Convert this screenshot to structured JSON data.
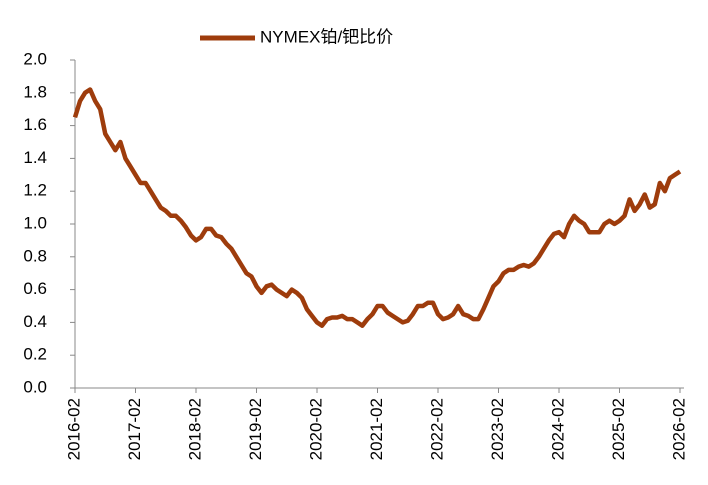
{
  "chart_data": {
    "type": "line",
    "legend": "top",
    "xticks": [
      "2016-02",
      "2017-02",
      "2018-02",
      "2019-02",
      "2020-02",
      "2021-02",
      "2022-02",
      "2023-02",
      "2024-02",
      "2025-02",
      "2026-02"
    ],
    "ylim": [
      0,
      2
    ],
    "yticks": [
      {
        "value": 0,
        "label": "0.0"
      },
      0.2,
      0.4,
      0.6,
      0.8,
      {
        "value": 1,
        "label": "1.0"
      },
      1.2,
      1.4,
      1.6,
      1.8,
      {
        "value": 2,
        "label": "2.0"
      }
    ],
    "x": [
      "2016-02",
      "2016-03",
      "2016-04",
      "2016-05",
      "2016-06",
      "2016-07",
      "2016-08",
      "2016-09",
      "2016-10",
      "2016-11",
      "2016-12",
      "2017-01",
      "2017-02",
      "2017-03",
      "2017-04",
      "2017-05",
      "2017-06",
      "2017-07",
      "2017-08",
      "2017-09",
      "2017-10",
      "2017-11",
      "2017-12",
      "2018-01",
      "2018-02",
      "2018-03",
      "2018-04",
      "2018-05",
      "2018-06",
      "2018-07",
      "2018-08",
      "2018-09",
      "2018-10",
      "2018-11",
      "2018-12",
      "2019-01",
      "2019-02",
      "2019-03",
      "2019-04",
      "2019-05",
      "2019-06",
      "2019-07",
      "2019-08",
      "2019-09",
      "2019-10",
      "2019-11",
      "2019-12",
      "2020-01",
      "2020-02",
      "2020-03",
      "2020-04",
      "2020-05",
      "2020-06",
      "2020-07",
      "2020-08",
      "2020-09",
      "2020-10",
      "2020-11",
      "2020-12",
      "2021-01",
      "2021-02",
      "2021-03",
      "2021-04",
      "2021-05",
      "2021-06",
      "2021-07",
      "2021-08",
      "2021-09",
      "2021-10",
      "2021-11",
      "2021-12",
      "2022-01",
      "2022-02",
      "2022-03",
      "2022-04",
      "2022-05",
      "2022-06",
      "2022-07",
      "2022-08",
      "2022-09",
      "2022-10",
      "2022-11",
      "2022-12",
      "2023-01",
      "2023-02",
      "2023-03",
      "2023-04",
      "2023-05",
      "2023-06",
      "2023-07",
      "2023-08",
      "2023-09",
      "2023-10",
      "2023-11",
      "2023-12",
      "2024-01",
      "2024-02",
      "2024-03",
      "2024-04",
      "2024-05",
      "2024-06",
      "2024-07",
      "2024-08",
      "2024-09",
      "2024-10",
      "2024-11",
      "2024-12",
      "2025-01",
      "2025-02",
      "2025-03",
      "2025-04",
      "2025-05",
      "2025-06",
      "2025-07",
      "2025-08",
      "2025-09",
      "2025-10",
      "2025-11",
      "2025-12",
      "2026-01",
      "2026-02"
    ],
    "series": [
      {
        "name": "NYMEX铂/钯比价",
        "color": "#9e3c0c",
        "values": [
          1.65,
          1.75,
          1.8,
          1.82,
          1.75,
          1.7,
          1.55,
          1.5,
          1.45,
          1.5,
          1.4,
          1.35,
          1.3,
          1.25,
          1.25,
          1.2,
          1.15,
          1.1,
          1.08,
          1.05,
          1.05,
          1.02,
          0.98,
          0.93,
          0.9,
          0.92,
          0.97,
          0.97,
          0.93,
          0.92,
          0.88,
          0.85,
          0.8,
          0.75,
          0.7,
          0.68,
          0.62,
          0.58,
          0.62,
          0.63,
          0.6,
          0.58,
          0.56,
          0.6,
          0.58,
          0.55,
          0.48,
          0.44,
          0.4,
          0.38,
          0.42,
          0.43,
          0.43,
          0.44,
          0.42,
          0.42,
          0.4,
          0.38,
          0.42,
          0.45,
          0.5,
          0.5,
          0.46,
          0.44,
          0.42,
          0.4,
          0.41,
          0.45,
          0.5,
          0.5,
          0.52,
          0.52,
          0.45,
          0.42,
          0.43,
          0.45,
          0.5,
          0.45,
          0.44,
          0.42,
          0.42,
          0.48,
          0.55,
          0.62,
          0.65,
          0.7,
          0.72,
          0.72,
          0.74,
          0.75,
          0.74,
          0.76,
          0.8,
          0.85,
          0.9,
          0.94,
          0.95,
          0.92,
          1.0,
          1.05,
          1.02,
          1.0,
          0.95,
          0.95,
          0.95,
          1.0,
          1.02,
          1.0,
          1.02,
          1.05,
          1.15,
          1.08,
          1.12,
          1.18,
          1.1,
          1.12,
          1.25,
          1.2,
          1.28,
          1.3,
          1.32
        ]
      }
    ]
  }
}
